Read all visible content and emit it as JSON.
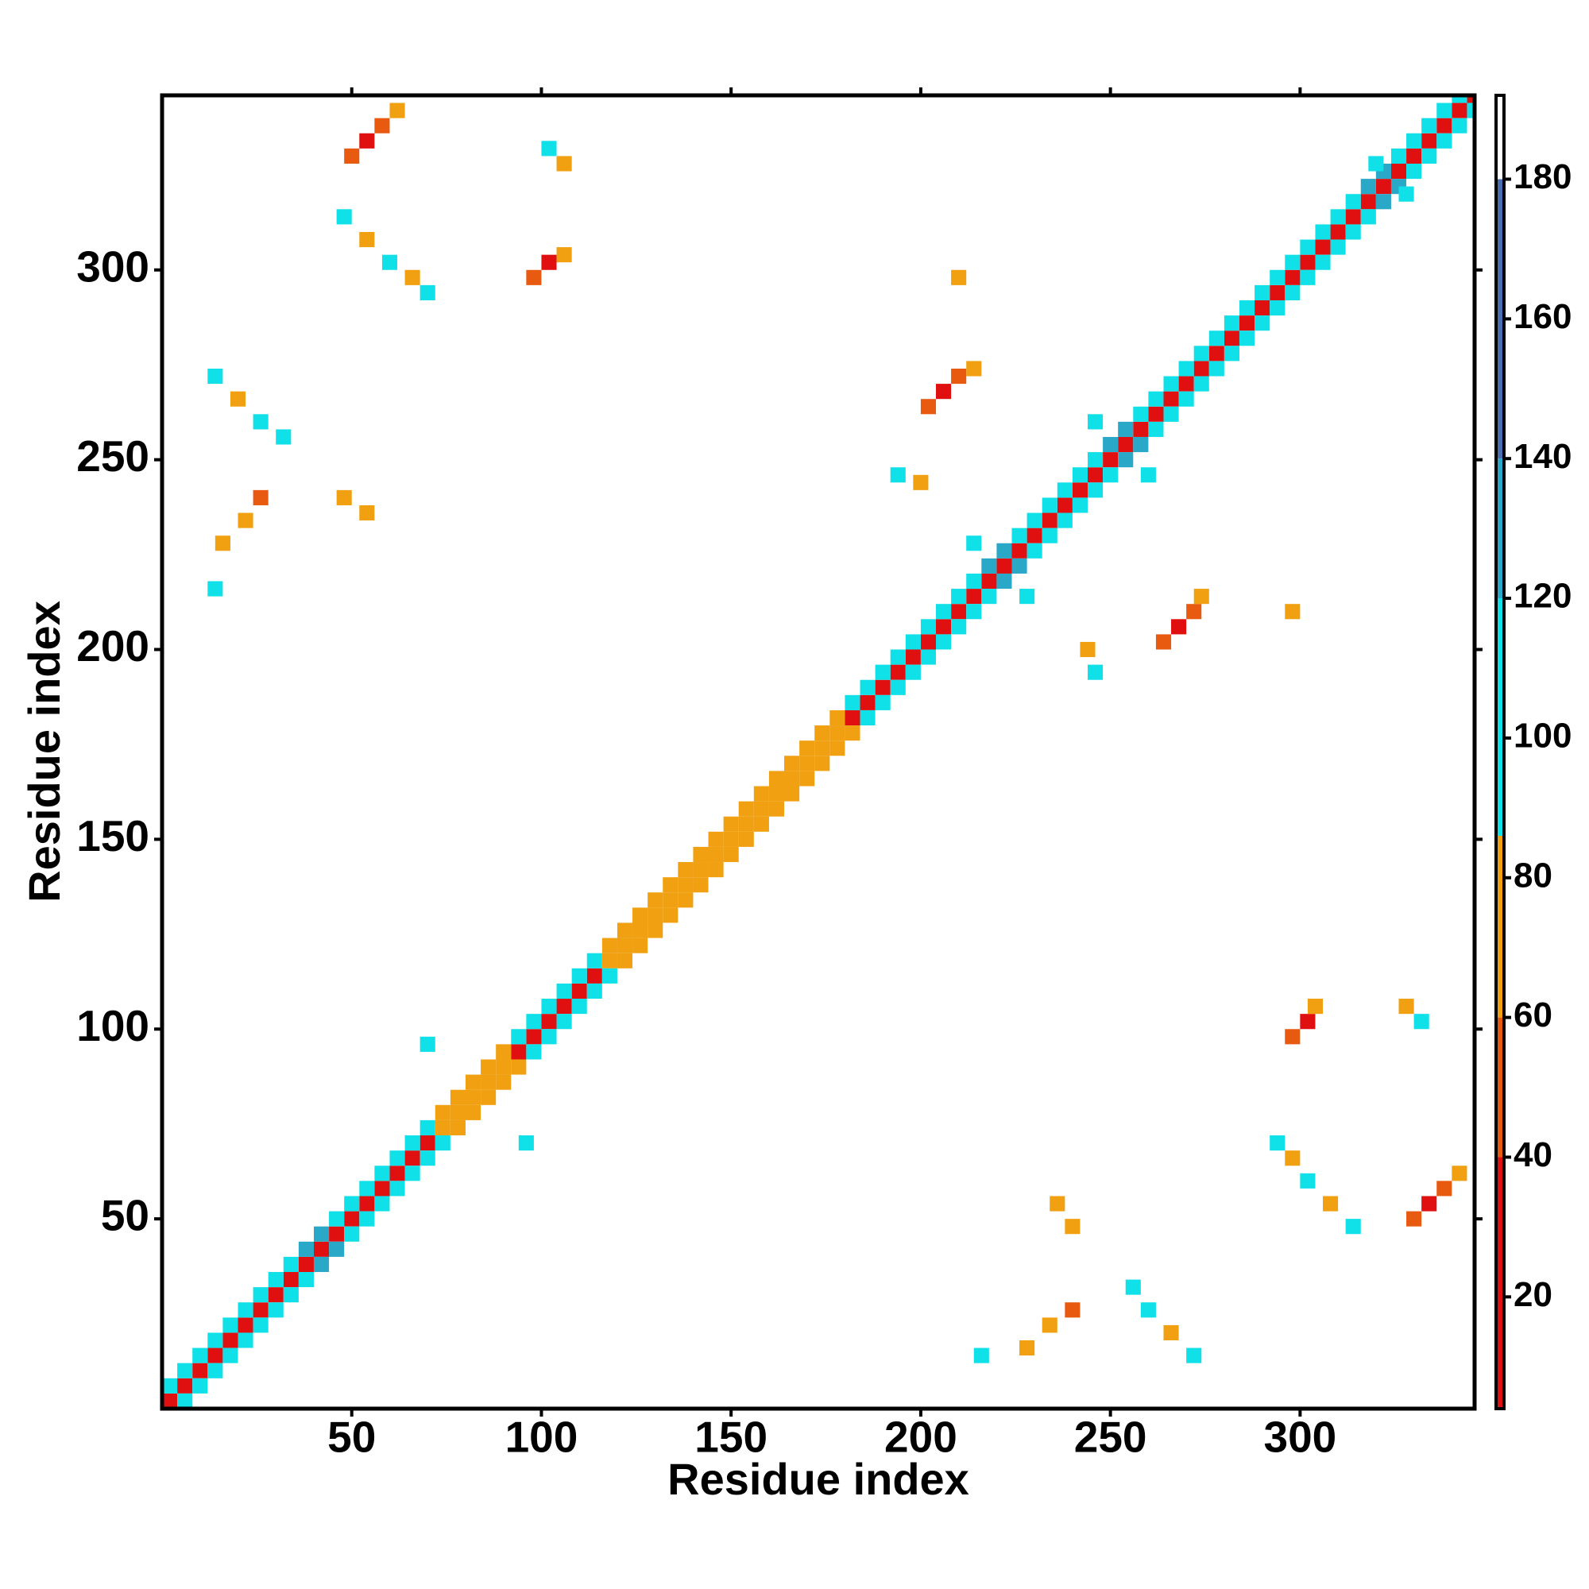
{
  "chart_data": {
    "type": "heatmap",
    "x_label": "Residue index",
    "y_label": "Residue index",
    "xlim": [
      0,
      346
    ],
    "ylim": [
      0,
      346
    ],
    "xticks": [
      50,
      100,
      150,
      200,
      250,
      300
    ],
    "yticks": [
      50,
      100,
      150,
      200,
      250,
      300
    ],
    "symmetric": true,
    "colorbar": {
      "lim": [
        4,
        192
      ],
      "ticks": [
        20,
        40,
        60,
        80,
        100,
        120,
        140,
        160,
        180
      ],
      "bounds": [
        4,
        40,
        60,
        86,
        120,
        140,
        180,
        192
      ],
      "colors": [
        "#e01010",
        "#e85a10",
        "#f0a010",
        "#10e0e8",
        "#2aa8c8",
        "#4a6fb0",
        "#ffffff"
      ]
    },
    "cells": {
      "x": [
        0,
        4,
        8,
        12,
        16,
        20,
        24,
        28,
        32,
        36,
        40,
        44,
        48,
        52,
        56,
        60,
        64,
        68,
        72,
        76,
        80,
        84,
        88,
        92,
        96,
        100,
        104,
        108,
        112,
        116,
        120,
        124,
        128,
        132,
        136,
        140,
        144,
        148,
        152,
        156,
        160,
        164,
        168,
        172,
        176,
        180,
        184,
        188,
        192,
        196,
        200,
        204,
        208,
        212,
        216,
        220,
        224,
        228,
        232,
        236,
        240,
        244,
        248,
        252,
        256,
        260,
        264,
        268,
        272,
        276,
        280,
        284,
        288,
        292,
        296,
        300,
        304,
        308,
        312,
        316,
        320,
        324,
        328,
        332,
        336,
        340,
        344,
        0,
        4,
        8,
        12,
        16,
        20,
        24,
        28,
        32,
        36,
        40,
        44,
        48,
        52,
        56,
        60,
        64,
        68,
        72,
        76,
        80,
        84,
        88,
        92,
        96,
        100,
        104,
        108,
        112,
        116,
        120,
        124,
        128,
        132,
        136,
        140,
        144,
        148,
        152,
        156,
        160,
        164,
        168,
        172,
        176,
        180,
        184,
        188,
        192,
        196,
        200,
        204,
        208,
        212,
        216,
        220,
        224,
        228,
        232,
        236,
        240,
        244,
        248,
        252,
        256,
        260,
        264,
        268,
        272,
        276,
        280,
        284,
        288,
        292,
        296,
        300,
        304,
        308,
        312,
        316,
        320,
        324,
        328,
        332,
        336,
        340,
        48,
        52,
        56,
        60,
        46,
        52,
        58,
        64,
        68,
        96,
        100,
        104,
        100,
        104,
        12,
        18,
        24,
        30,
        14,
        20,
        24,
        12,
        46,
        52,
        200,
        204,
        208,
        212,
        192,
        198,
        208,
        212,
        244,
        318,
        68
      ],
      "y": [
        0,
        4,
        8,
        12,
        16,
        20,
        24,
        28,
        32,
        36,
        40,
        44,
        48,
        52,
        56,
        60,
        64,
        68,
        72,
        76,
        80,
        84,
        88,
        92,
        96,
        100,
        104,
        108,
        112,
        116,
        120,
        124,
        128,
        132,
        136,
        140,
        144,
        148,
        152,
        156,
        160,
        164,
        168,
        172,
        176,
        180,
        184,
        188,
        192,
        196,
        200,
        204,
        208,
        212,
        216,
        220,
        224,
        228,
        232,
        236,
        240,
        244,
        248,
        252,
        256,
        260,
        264,
        268,
        272,
        276,
        280,
        284,
        288,
        292,
        296,
        300,
        304,
        308,
        312,
        316,
        320,
        324,
        328,
        332,
        336,
        340,
        344,
        4,
        8,
        12,
        16,
        20,
        24,
        28,
        32,
        36,
        40,
        44,
        48,
        52,
        56,
        60,
        64,
        68,
        72,
        76,
        80,
        84,
        88,
        92,
        96,
        100,
        104,
        108,
        112,
        116,
        120,
        124,
        128,
        132,
        136,
        140,
        144,
        148,
        152,
        156,
        160,
        164,
        168,
        172,
        176,
        180,
        184,
        188,
        192,
        196,
        200,
        204,
        208,
        212,
        216,
        220,
        224,
        228,
        232,
        236,
        240,
        244,
        248,
        252,
        256,
        260,
        264,
        268,
        272,
        276,
        280,
        284,
        288,
        292,
        296,
        300,
        304,
        308,
        312,
        316,
        320,
        324,
        328,
        332,
        336,
        340,
        344,
        328,
        332,
        336,
        340,
        312,
        306,
        300,
        296,
        292,
        296,
        300,
        302,
        330,
        326,
        270,
        264,
        258,
        254,
        226,
        232,
        238,
        214,
        238,
        234,
        262,
        266,
        270,
        272,
        244,
        242,
        296,
        226,
        258,
        326,
        94
      ],
      "values": [
        8,
        30,
        30,
        8,
        30,
        30,
        8,
        30,
        30,
        8,
        30,
        30,
        8,
        30,
        30,
        8,
        30,
        30,
        70,
        70,
        70,
        70,
        70,
        30,
        8,
        30,
        30,
        8,
        30,
        70,
        70,
        70,
        70,
        70,
        70,
        70,
        70,
        70,
        70,
        70,
        70,
        70,
        70,
        70,
        70,
        8,
        30,
        30,
        8,
        30,
        30,
        8,
        30,
        30,
        8,
        30,
        30,
        8,
        30,
        30,
        8,
        30,
        30,
        8,
        30,
        30,
        8,
        30,
        30,
        8,
        30,
        30,
        8,
        30,
        30,
        8,
        30,
        30,
        8,
        30,
        30,
        8,
        30,
        30,
        8,
        30,
        30,
        95,
        95,
        95,
        95,
        95,
        95,
        95,
        95,
        95,
        130,
        130,
        95,
        95,
        95,
        95,
        95,
        95,
        95,
        70,
        70,
        70,
        70,
        70,
        95,
        95,
        95,
        95,
        95,
        95,
        70,
        70,
        70,
        70,
        70,
        70,
        70,
        70,
        70,
        70,
        70,
        70,
        70,
        70,
        70,
        70,
        95,
        95,
        95,
        95,
        95,
        95,
        95,
        95,
        95,
        130,
        130,
        95,
        95,
        95,
        95,
        95,
        95,
        130,
        130,
        95,
        95,
        95,
        95,
        95,
        95,
        95,
        95,
        95,
        95,
        95,
        95,
        95,
        95,
        95,
        130,
        130,
        95,
        95,
        95,
        95,
        95,
        40,
        30,
        40,
        70,
        95,
        70,
        95,
        70,
        95,
        40,
        30,
        70,
        95,
        70,
        95,
        70,
        95,
        95,
        70,
        70,
        40,
        95,
        70,
        70,
        40,
        30,
        40,
        70,
        95,
        70,
        70,
        95,
        95,
        95,
        95
      ]
    }
  }
}
